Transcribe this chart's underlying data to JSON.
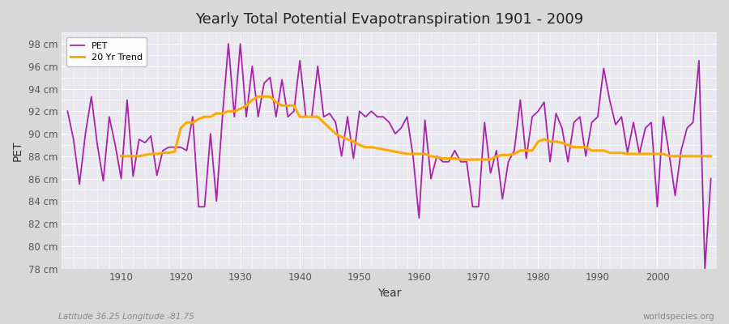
{
  "title": "Yearly Total Potential Evapotranspiration 1901 - 2009",
  "xlabel": "Year",
  "ylabel": "PET",
  "bottom_left_label": "Latitude 36.25 Longitude -81.75",
  "bottom_right_label": "worldspecies.org",
  "fig_bg_color": "#d8d8d8",
  "plot_bg_color": "#e8e8ee",
  "grid_color": "#ffffff",
  "pet_color": "#aa22aa",
  "trend_color": "#ffaa00",
  "ylim_min": 78,
  "ylim_max": 99,
  "yticks": [
    78,
    80,
    82,
    84,
    86,
    88,
    90,
    92,
    94,
    96,
    98
  ],
  "years": [
    1901,
    1902,
    1903,
    1904,
    1905,
    1906,
    1907,
    1908,
    1909,
    1910,
    1911,
    1912,
    1913,
    1914,
    1915,
    1916,
    1917,
    1918,
    1919,
    1920,
    1921,
    1922,
    1923,
    1924,
    1925,
    1926,
    1927,
    1928,
    1929,
    1930,
    1931,
    1932,
    1933,
    1934,
    1935,
    1936,
    1937,
    1938,
    1939,
    1940,
    1941,
    1942,
    1943,
    1944,
    1945,
    1946,
    1947,
    1948,
    1949,
    1950,
    1951,
    1952,
    1953,
    1954,
    1955,
    1956,
    1957,
    1958,
    1959,
    1960,
    1961,
    1962,
    1963,
    1964,
    1965,
    1966,
    1967,
    1968,
    1969,
    1970,
    1971,
    1972,
    1973,
    1974,
    1975,
    1976,
    1977,
    1978,
    1979,
    1980,
    1981,
    1982,
    1983,
    1984,
    1985,
    1986,
    1987,
    1988,
    1989,
    1990,
    1991,
    1992,
    1993,
    1994,
    1995,
    1996,
    1997,
    1998,
    1999,
    2000,
    2001,
    2002,
    2003,
    2004,
    2005,
    2006,
    2007,
    2008,
    2009
  ],
  "pet": [
    92.0,
    89.5,
    85.5,
    90.0,
    93.3,
    89.0,
    85.8,
    91.5,
    89.0,
    86.0,
    93.0,
    86.2,
    89.5,
    89.2,
    89.8,
    86.3,
    88.5,
    88.8,
    88.8,
    88.8,
    88.5,
    91.5,
    83.5,
    83.5,
    90.0,
    84.0,
    91.5,
    98.0,
    91.5,
    98.0,
    91.5,
    96.0,
    91.5,
    94.5,
    95.0,
    91.5,
    94.8,
    91.5,
    92.0,
    96.5,
    91.5,
    91.5,
    96.0,
    91.5,
    91.8,
    91.0,
    88.0,
    91.5,
    87.8,
    92.0,
    91.5,
    92.0,
    91.5,
    91.5,
    91.0,
    90.0,
    90.5,
    91.5,
    88.0,
    82.5,
    91.2,
    86.0,
    88.0,
    87.5,
    87.5,
    88.5,
    87.5,
    87.5,
    83.5,
    83.5,
    91.0,
    86.5,
    88.5,
    84.2,
    87.5,
    88.5,
    93.0,
    87.8,
    91.5,
    92.0,
    92.8,
    87.5,
    91.8,
    90.5,
    87.5,
    91.0,
    91.5,
    88.0,
    91.0,
    91.5,
    95.8,
    93.0,
    90.8,
    91.5,
    88.3,
    91.0,
    88.2,
    90.5,
    91.0,
    83.5,
    91.5,
    88.2,
    84.5,
    88.5,
    90.5,
    91.0,
    96.5,
    78.0,
    86.0
  ],
  "trend": [
    null,
    null,
    null,
    null,
    null,
    null,
    null,
    null,
    null,
    88.0,
    88.0,
    88.0,
    88.0,
    88.1,
    88.2,
    88.2,
    88.3,
    88.3,
    88.4,
    90.5,
    91.0,
    91.0,
    91.3,
    91.5,
    91.5,
    91.8,
    91.8,
    92.0,
    92.0,
    92.2,
    92.5,
    93.0,
    93.3,
    93.3,
    93.3,
    92.8,
    92.5,
    92.5,
    92.5,
    91.5,
    91.5,
    91.5,
    91.5,
    91.0,
    90.5,
    90.0,
    89.7,
    89.5,
    89.3,
    89.0,
    88.8,
    88.8,
    88.7,
    88.6,
    88.5,
    88.4,
    88.3,
    88.2,
    88.2,
    88.2,
    88.2,
    88.0,
    87.9,
    87.8,
    87.8,
    87.8,
    87.7,
    87.7,
    87.7,
    87.7,
    87.7,
    87.7,
    88.0,
    88.1,
    88.1,
    88.2,
    88.5,
    88.5,
    88.5,
    89.3,
    89.5,
    89.3,
    89.3,
    89.2,
    89.0,
    88.8,
    88.8,
    88.8,
    88.5,
    88.5,
    88.5,
    88.3,
    88.3,
    88.3,
    88.2,
    88.2,
    88.2,
    88.2,
    88.2,
    88.2,
    88.2,
    88.0,
    88.0,
    88.0,
    88.0,
    88.0,
    88.0,
    88.0,
    88.0
  ]
}
